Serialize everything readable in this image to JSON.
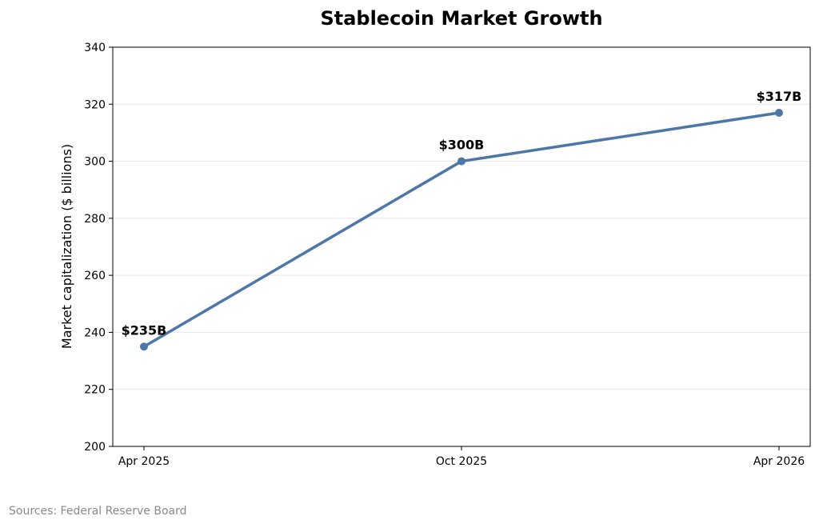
{
  "chart_data": {
    "type": "line",
    "title": "Stablecoin Market Growth",
    "xlabel": "",
    "ylabel": "Market capitalization ($ billions)",
    "categories": [
      "Apr 2025",
      "Oct 2025",
      "Apr 2026"
    ],
    "series": [
      {
        "values": [
          235,
          300,
          317
        ],
        "data_labels": [
          "$235B",
          "$300B",
          "$317B"
        ],
        "color": "#4e77a8",
        "marker": "circle"
      }
    ],
    "ylim": [
      200,
      340
    ],
    "yticks": [
      200,
      220,
      240,
      260,
      280,
      300,
      320,
      340
    ],
    "grid": "horizontal",
    "legend": "none"
  },
  "footer": {
    "source": "Sources: Federal Reserve Board"
  },
  "colors": {
    "line": "#4e77a8",
    "grid": "#e6e6e6",
    "axis": "#000000",
    "source_text": "#8a8a8a"
  }
}
